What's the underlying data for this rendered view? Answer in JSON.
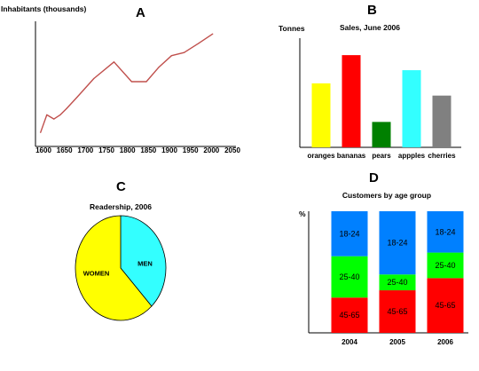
{
  "chart_data": [
    {
      "panel": "A",
      "type": "line",
      "ylabel": "Inhabitants  (thousands)",
      "x_ticks": [
        1600,
        1650,
        1700,
        1750,
        1800,
        1850,
        1900,
        1950,
        2000,
        2050
      ],
      "xlim": [
        1585,
        2065
      ],
      "ylim": [
        0,
        100
      ],
      "series": [
        {
          "color": "#c0504d",
          "points": [
            [
              1593,
              4
            ],
            [
              1608,
              21
            ],
            [
              1625,
              17
            ],
            [
              1640,
              21
            ],
            [
              1655,
              27
            ],
            [
              1680,
              38
            ],
            [
              1720,
              56
            ],
            [
              1768,
              72
            ],
            [
              1810,
              53
            ],
            [
              1845,
              53
            ],
            [
              1875,
              67
            ],
            [
              1905,
              78
            ],
            [
              1935,
              81
            ],
            [
              1970,
              90
            ],
            [
              2003,
              99
            ]
          ]
        }
      ]
    },
    {
      "panel": "B",
      "type": "bar",
      "title": "Sales, June 2006",
      "ylabel": "Tonnes",
      "categories": [
        "oranges",
        "bananas",
        "pears",
        "appples",
        "cherries"
      ],
      "values": [
        68,
        98,
        27,
        82,
        55
      ],
      "colors": [
        "#ffff00",
        "#ff0000",
        "#008000",
        "#33ffff",
        "#808080"
      ],
      "ylim": [
        0,
        100
      ]
    },
    {
      "panel": "C",
      "type": "pie",
      "title": "Readership, 2006",
      "labels": [
        "MEN",
        "WOMEN"
      ],
      "values": [
        38,
        62
      ],
      "colors": [
        "#33ffff",
        "#ffff00"
      ]
    },
    {
      "panel": "D",
      "type": "bar",
      "stacked": true,
      "title": "Customers by age group",
      "ylabel": "%",
      "categories": [
        "2004",
        "2005",
        "2006"
      ],
      "series": [
        {
          "name": "45-65",
          "color": "#ff0000",
          "values": [
            29,
            35,
            45
          ]
        },
        {
          "name": "25-40",
          "color": "#00ff00",
          "values": [
            34,
            13,
            21
          ]
        },
        {
          "name": "18-24",
          "color": "#0080ff",
          "values": [
            37,
            52,
            34
          ]
        }
      ],
      "ylim": [
        0,
        100
      ]
    }
  ]
}
